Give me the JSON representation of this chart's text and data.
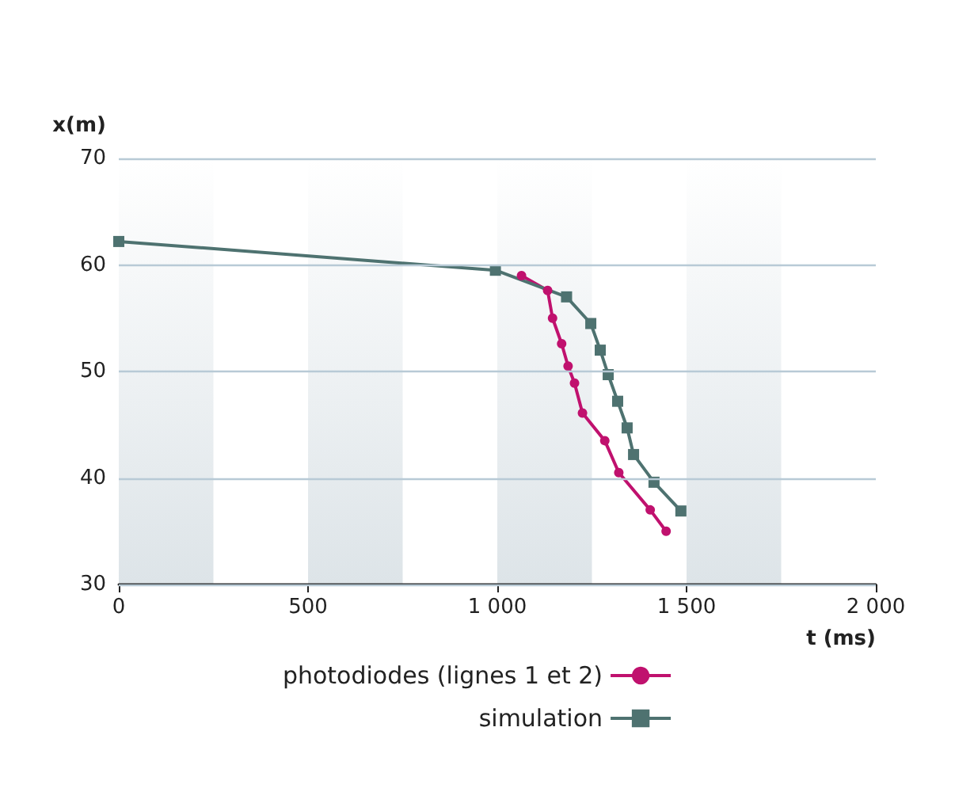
{
  "chart_data": {
    "type": "line",
    "xlabel": "t (ms)",
    "ylabel": "x(m)",
    "xlim": [
      0,
      2000
    ],
    "ylim": [
      30,
      70
    ],
    "xticks": [
      0,
      500,
      {
        "value": 1000,
        "label": "1 000"
      },
      {
        "value": 1500,
        "label": "1 500"
      },
      {
        "value": 2000,
        "label": "2 000"
      }
    ],
    "yticks": [
      30,
      40,
      50,
      60,
      70
    ],
    "grid": "y",
    "legend": "bottom",
    "marker": "circle",
    "line_style": "solid",
    "bands": [
      {
        "axis": "x",
        "from": 0,
        "to": 250,
        "color": "#dde4e8"
      },
      {
        "axis": "x",
        "from": 500,
        "to": 750,
        "color": "#dde4e8"
      },
      {
        "axis": "x",
        "from": 1000,
        "to": 1250,
        "color": "#dde4e8"
      },
      {
        "axis": "x",
        "from": 1500,
        "to": 1750,
        "color": "#dde4e8"
      }
    ],
    "series": [
      {
        "name": "photodiodes (lignes 1 et 2)",
        "color": "#c0116e",
        "x": [
          1064,
          1133,
          1146,
          1170,
          1187,
          1204,
          1225,
          1284,
          1321,
          1404,
          1446
        ],
        "values": [
          59.0,
          57.6,
          55.0,
          52.6,
          50.5,
          48.9,
          46.1,
          43.5,
          40.5,
          37.0,
          35.0
        ]
      },
      {
        "name": "simulation",
        "color": "#4e7270",
        "marker": "square",
        "x": [
          0,
          995,
          1183,
          1247,
          1272,
          1293,
          1318,
          1343,
          1360,
          1414,
          1485
        ],
        "values": [
          62.2,
          59.5,
          57.0,
          54.5,
          52.0,
          49.7,
          47.2,
          44.7,
          42.2,
          39.6,
          36.9
        ]
      }
    ]
  }
}
